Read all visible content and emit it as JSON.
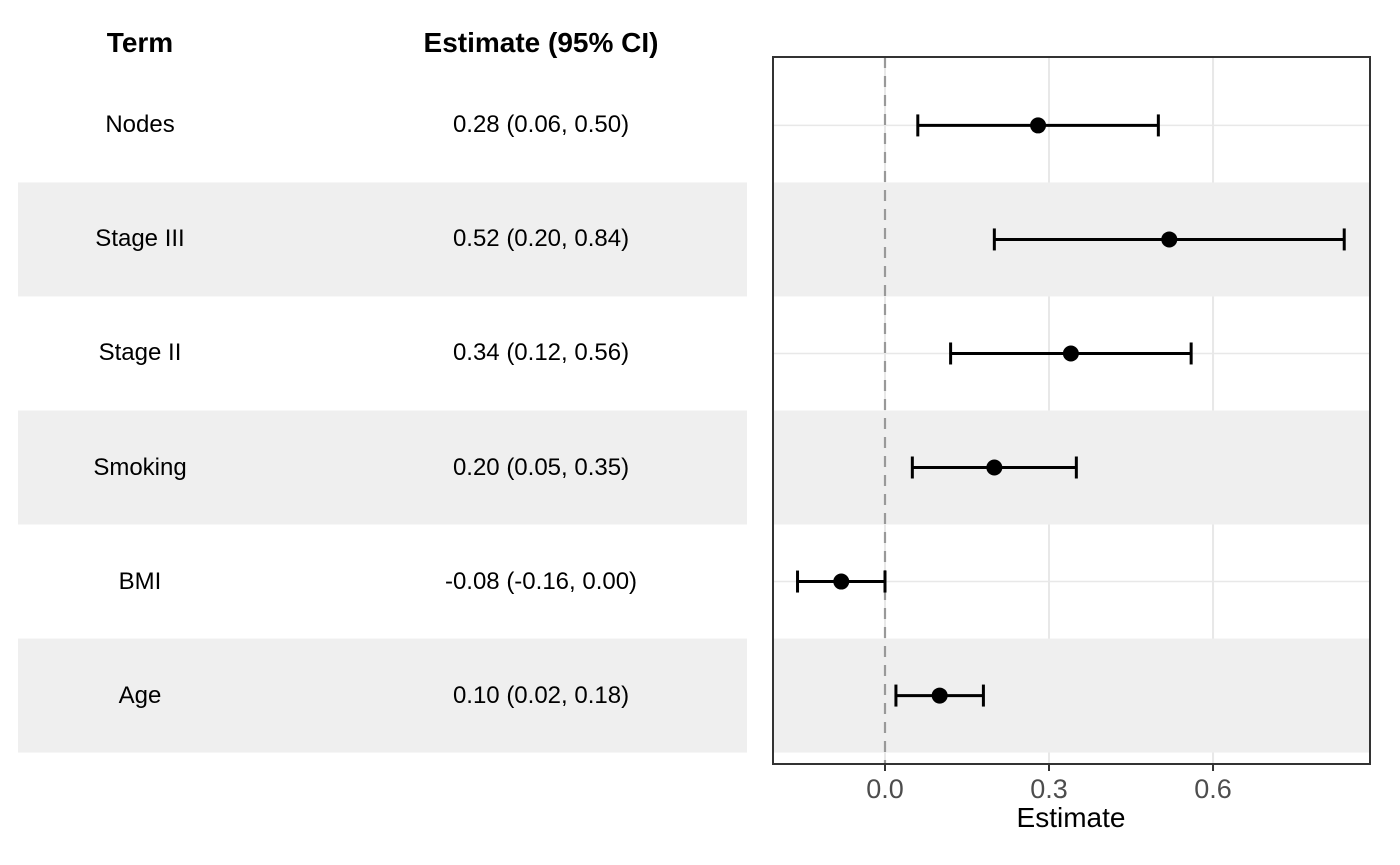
{
  "table": {
    "header_term": "Term",
    "header_estimate": "Estimate (95% CI)",
    "rows": [
      {
        "term": "Nodes",
        "estimate_ci": "0.28 (0.06, 0.50)"
      },
      {
        "term": "Stage III",
        "estimate_ci": "0.52 (0.20, 0.84)"
      },
      {
        "term": "Stage II",
        "estimate_ci": "0.34 (0.12, 0.56)"
      },
      {
        "term": "Smoking",
        "estimate_ci": "0.20 (0.05, 0.35)"
      },
      {
        "term": "BMI",
        "estimate_ci": "-0.08 (-0.16, 0.00)"
      },
      {
        "term": "Age",
        "estimate_ci": "0.10 (0.02, 0.18)"
      }
    ]
  },
  "chart_data": {
    "type": "scatter",
    "subtype": "forest-plot",
    "title": "",
    "xlabel": "Estimate",
    "ylabel": "",
    "categories": [
      "Nodes",
      "Stage III",
      "Stage II",
      "Smoking",
      "BMI",
      "Age"
    ],
    "series": [
      {
        "name": "estimate",
        "values": [
          0.28,
          0.52,
          0.34,
          0.2,
          -0.08,
          0.1
        ]
      },
      {
        "name": "ci_lower",
        "values": [
          0.06,
          0.2,
          0.12,
          0.05,
          -0.16,
          0.02
        ]
      },
      {
        "name": "ci_upper",
        "values": [
          0.5,
          0.84,
          0.56,
          0.35,
          0.0,
          0.18
        ]
      }
    ],
    "x_ticks": [
      0.0,
      0.3,
      0.6
    ],
    "x_tick_labels": [
      "0.0",
      "0.3",
      "0.6"
    ],
    "xlim": [
      -0.21,
      0.89
    ],
    "reference_line_x": 0,
    "grid": true,
    "legend": "none",
    "striped_rows": [
      "Stage III",
      "Smoking",
      "Age"
    ]
  },
  "colors": {
    "background": "#ffffff",
    "stripe": "#efefef",
    "gridline": "#e8e8e8",
    "panel_border": "#333333",
    "reference_line": "#999999",
    "tick_mark": "#333333",
    "tick_label": "#4d4d4d",
    "text": "#000000",
    "point": "#000000",
    "interval": "#000000"
  }
}
